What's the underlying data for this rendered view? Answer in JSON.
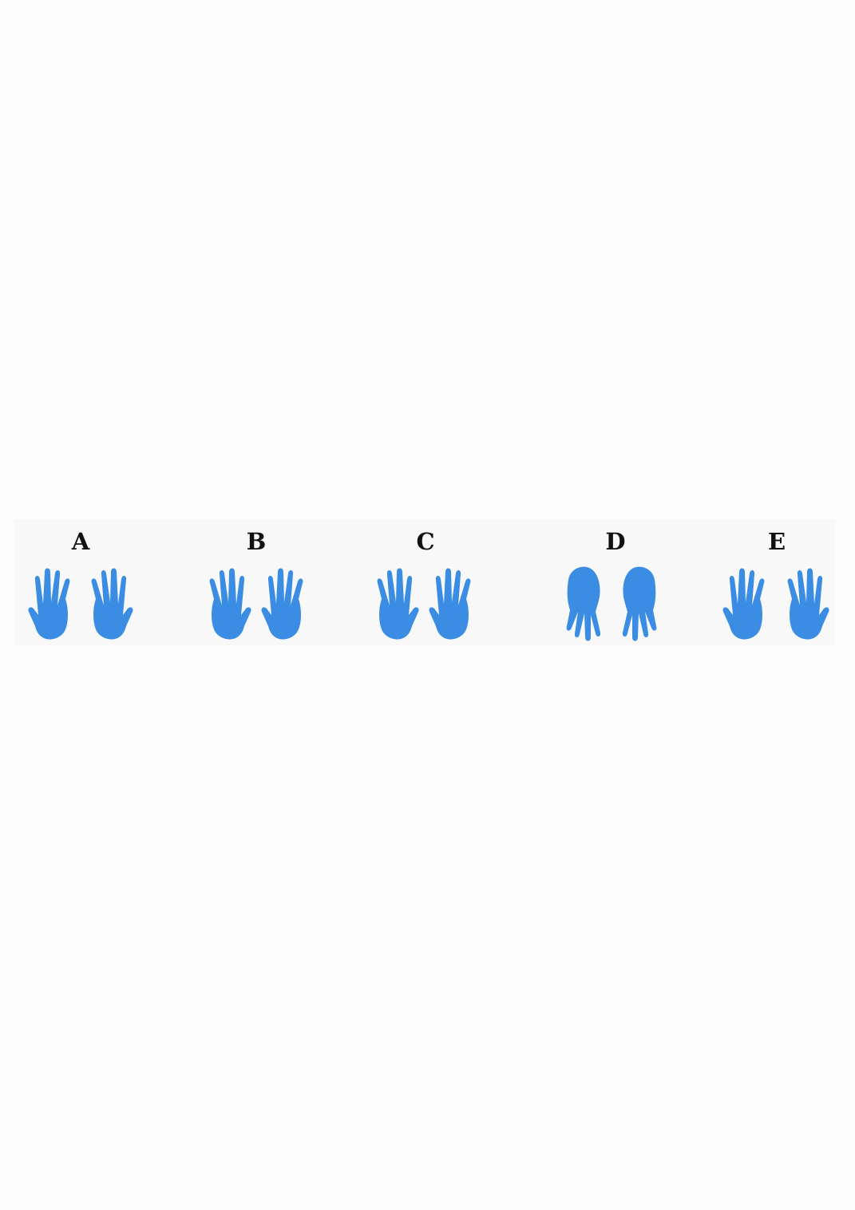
{
  "colors": {
    "hand": "#3b8de4",
    "label": "#111111",
    "strip": "#f8f8f8"
  },
  "options": [
    {
      "label": "A",
      "left_hand": "back-of-hand-icon",
      "right_hand": "back-of-hand-icon"
    },
    {
      "label": "B",
      "left_hand": "back-of-hand-icon",
      "right_hand": "back-of-hand-icon"
    },
    {
      "label": "C",
      "left_hand": "back-of-hand-icon",
      "right_hand": "back-of-hand-icon"
    },
    {
      "label": "D",
      "left_hand": "hanging-hand-icon",
      "right_hand": "hanging-hand-icon"
    },
    {
      "label": "E",
      "left_hand": "back-of-hand-icon",
      "right_hand": "back-of-hand-icon"
    }
  ]
}
